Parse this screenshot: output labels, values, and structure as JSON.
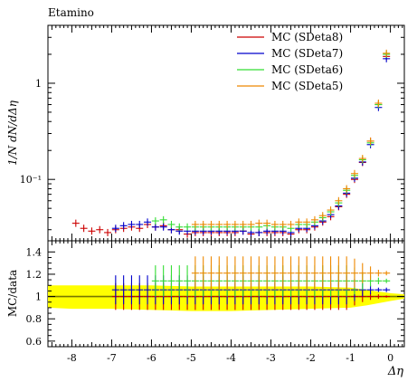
{
  "chart_data": [
    {
      "type": "scatter",
      "title": "Etamino",
      "ylabel": "1/N dN/dΔη",
      "yscale": "log",
      "ylim": [
        0.023,
        4.0
      ],
      "xlim": [
        -8.6,
        0.35
      ],
      "yticks": [
        {
          "value": 1,
          "label": "1"
        },
        {
          "value": 0.1,
          "label": "10⁻¹"
        }
      ],
      "legend_position": "top-right",
      "series": [
        {
          "name": "MC (SDeta8)",
          "color": "#cc0000",
          "x": [
            -7.9,
            -7.7,
            -7.5,
            -7.3,
            -7.1,
            -6.9,
            -6.7,
            -6.5,
            -6.3,
            -6.1,
            -5.9,
            -5.7,
            -5.5,
            -5.3,
            -5.1,
            -4.9,
            -4.7,
            -4.5,
            -4.3,
            -4.1,
            -3.9,
            -3.7,
            -3.5,
            -3.3,
            -3.1,
            -2.9,
            -2.7,
            -2.5,
            -2.3,
            -2.1,
            -1.9,
            -1.7,
            -1.5,
            -1.3,
            -1.1,
            -0.9,
            -0.7,
            -0.5,
            -0.3,
            -0.1
          ],
          "y": [
            0.035,
            0.031,
            0.029,
            0.03,
            0.028,
            0.03,
            0.031,
            0.032,
            0.031,
            0.034,
            0.032,
            0.033,
            0.03,
            0.03,
            0.027,
            0.028,
            0.028,
            0.028,
            0.028,
            0.028,
            0.028,
            0.029,
            0.027,
            0.028,
            0.028,
            0.028,
            0.028,
            0.027,
            0.03,
            0.03,
            0.032,
            0.036,
            0.041,
            0.052,
            0.07,
            0.1,
            0.15,
            0.25,
            0.6,
            1.9
          ]
        },
        {
          "name": "MC (SDeta7)",
          "color": "#0000cc",
          "x": [
            -6.9,
            -6.7,
            -6.5,
            -6.3,
            -6.1,
            -5.9,
            -5.7,
            -5.5,
            -5.3,
            -5.1,
            -4.9,
            -4.7,
            -4.5,
            -4.3,
            -4.1,
            -3.9,
            -3.7,
            -3.5,
            -3.3,
            -3.1,
            -2.9,
            -2.7,
            -2.5,
            -2.3,
            -2.1,
            -1.9,
            -1.7,
            -1.5,
            -1.3,
            -1.1,
            -0.9,
            -0.7,
            -0.5,
            -0.3,
            -0.1
          ],
          "y": [
            0.031,
            0.033,
            0.034,
            0.034,
            0.036,
            0.032,
            0.032,
            0.03,
            0.029,
            0.029,
            0.029,
            0.029,
            0.029,
            0.029,
            0.029,
            0.029,
            0.029,
            0.028,
            0.028,
            0.029,
            0.029,
            0.029,
            0.028,
            0.031,
            0.031,
            0.033,
            0.037,
            0.043,
            0.053,
            0.072,
            0.103,
            0.152,
            0.23,
            0.56,
            1.8
          ]
        },
        {
          "name": "MC (SDeta6)",
          "color": "#33dd33",
          "x": [
            -5.9,
            -5.7,
            -5.5,
            -5.3,
            -5.1,
            -4.9,
            -4.7,
            -4.5,
            -4.3,
            -4.1,
            -3.9,
            -3.7,
            -3.5,
            -3.3,
            -3.1,
            -2.9,
            -2.7,
            -2.5,
            -2.3,
            -2.1,
            -1.9,
            -1.7,
            -1.5,
            -1.3,
            -1.1,
            -0.9,
            -0.7,
            -0.5,
            -0.3,
            -0.1
          ],
          "y": [
            0.037,
            0.038,
            0.034,
            0.032,
            0.032,
            0.032,
            0.032,
            0.032,
            0.032,
            0.032,
            0.032,
            0.032,
            0.032,
            0.032,
            0.033,
            0.032,
            0.032,
            0.031,
            0.034,
            0.034,
            0.036,
            0.04,
            0.046,
            0.057,
            0.077,
            0.11,
            0.16,
            0.24,
            0.6,
            2.0
          ]
        },
        {
          "name": "MC (SDeta5)",
          "color": "#ee8800",
          "x": [
            -4.9,
            -4.7,
            -4.5,
            -4.3,
            -4.1,
            -3.9,
            -3.7,
            -3.5,
            -3.3,
            -3.1,
            -2.9,
            -2.7,
            -2.5,
            -2.3,
            -2.1,
            -1.9,
            -1.7,
            -1.5,
            -1.3,
            -1.1,
            -0.9,
            -0.7,
            -0.5,
            -0.3,
            -0.1
          ],
          "y": [
            0.034,
            0.034,
            0.034,
            0.034,
            0.034,
            0.034,
            0.034,
            0.034,
            0.035,
            0.035,
            0.034,
            0.034,
            0.034,
            0.036,
            0.036,
            0.038,
            0.042,
            0.048,
            0.06,
            0.08,
            0.115,
            0.165,
            0.25,
            0.62,
            2.05
          ]
        }
      ]
    },
    {
      "type": "scatter",
      "xlabel": "Δη",
      "ylabel": "MC/data",
      "ylim": [
        0.55,
        1.5
      ],
      "xlim": [
        -8.6,
        0.35
      ],
      "yticks": [
        {
          "value": 0.6,
          "label": "0.6"
        },
        {
          "value": 0.8,
          "label": "0.8"
        },
        {
          "value": 1.0,
          "label": "1"
        },
        {
          "value": 1.2,
          "label": "1.2"
        },
        {
          "value": 1.4,
          "label": "1.4"
        }
      ],
      "xticks": [
        {
          "value": -8,
          "label": "-8"
        },
        {
          "value": -7,
          "label": "-7"
        },
        {
          "value": -6,
          "label": "-6"
        },
        {
          "value": -5,
          "label": "-5"
        },
        {
          "value": -4,
          "label": "-4"
        },
        {
          "value": -3,
          "label": "-3"
        },
        {
          "value": -2,
          "label": "-2"
        },
        {
          "value": -1,
          "label": "-1"
        },
        {
          "value": 0,
          "label": "0"
        }
      ],
      "reference_line": 1.0,
      "reference_color": "#777700",
      "uncertainty_band": {
        "color": "#ffff00",
        "x": [
          -8.6,
          -8.0,
          -7.0,
          -6.0,
          -5.0,
          -4.0,
          -3.0,
          -2.0,
          -1.0,
          -0.6,
          0.0,
          0.35
        ],
        "y_low": [
          0.9,
          0.89,
          0.89,
          0.88,
          0.87,
          0.87,
          0.88,
          0.89,
          0.9,
          0.92,
          0.96,
          0.98
        ],
        "y_high": [
          1.1,
          1.1,
          1.1,
          1.1,
          1.09,
          1.09,
          1.09,
          1.09,
          1.08,
          1.06,
          1.03,
          1.02
        ]
      },
      "series": [
        {
          "name": "MC (SDeta8)",
          "color": "#cc0000",
          "x": [
            -6.9,
            -6.7,
            -6.5,
            -6.3,
            -6.1,
            -5.9,
            -5.7,
            -5.5,
            -5.3,
            -5.1,
            -4.9,
            -4.7,
            -4.5,
            -4.3,
            -4.1,
            -3.9,
            -3.7,
            -3.5,
            -3.3,
            -3.1,
            -2.9,
            -2.7,
            -2.5,
            -2.3,
            -2.1,
            -1.9,
            -1.7,
            -1.5,
            -1.3,
            -1.1,
            -0.9,
            -0.7,
            -0.5,
            -0.3,
            -0.1
          ],
          "y": [
            1.0,
            1.0,
            1.0,
            1.0,
            1.0,
            1.0,
            1.0,
            1.0,
            1.0,
            1.0,
            1.0,
            1.0,
            1.0,
            1.0,
            1.0,
            1.0,
            1.0,
            1.0,
            1.0,
            1.0,
            1.0,
            1.0,
            1.0,
            1.0,
            1.0,
            1.0,
            1.0,
            1.0,
            1.0,
            1.0,
            1.0,
            1.0,
            1.0,
            1.0,
            1.0
          ],
          "err": [
            0.12,
            0.12,
            0.12,
            0.12,
            0.12,
            0.12,
            0.12,
            0.12,
            0.12,
            0.12,
            0.12,
            0.12,
            0.12,
            0.12,
            0.12,
            0.12,
            0.12,
            0.12,
            0.12,
            0.12,
            0.12,
            0.12,
            0.12,
            0.12,
            0.12,
            0.12,
            0.12,
            0.12,
            0.12,
            0.12,
            0.08,
            0.05,
            0.03,
            0.02,
            0.01
          ]
        },
        {
          "name": "MC (SDeta7)",
          "color": "#0000cc",
          "x": [
            -6.9,
            -6.7,
            -6.5,
            -6.3,
            -6.1,
            -5.9,
            -5.7,
            -5.5,
            -5.3,
            -5.1,
            -4.9,
            -4.7,
            -4.5,
            -4.3,
            -4.1,
            -3.9,
            -3.7,
            -3.5,
            -3.3,
            -3.1,
            -2.9,
            -2.7,
            -2.5,
            -2.3,
            -2.1,
            -1.9,
            -1.7,
            -1.5,
            -1.3,
            -1.1,
            -0.9,
            -0.7,
            -0.5,
            -0.3,
            -0.1
          ],
          "y": [
            1.06,
            1.06,
            1.06,
            1.06,
            1.06,
            1.06,
            1.06,
            1.06,
            1.06,
            1.06,
            1.06,
            1.06,
            1.06,
            1.06,
            1.06,
            1.06,
            1.06,
            1.06,
            1.06,
            1.06,
            1.06,
            1.06,
            1.06,
            1.06,
            1.06,
            1.06,
            1.06,
            1.06,
            1.06,
            1.06,
            1.06,
            1.06,
            1.06,
            1.06,
            1.06
          ],
          "err": [
            0.13,
            0.13,
            0.13,
            0.13,
            0.13,
            0.13,
            0.13,
            0.13,
            0.13,
            0.13,
            0.13,
            0.13,
            0.13,
            0.13,
            0.13,
            0.13,
            0.13,
            0.13,
            0.13,
            0.13,
            0.13,
            0.13,
            0.13,
            0.13,
            0.13,
            0.13,
            0.13,
            0.13,
            0.13,
            0.13,
            0.1,
            0.06,
            0.04,
            0.02,
            0.02
          ]
        },
        {
          "name": "MC (SDeta6)",
          "color": "#33dd33",
          "x": [
            -5.9,
            -5.7,
            -5.5,
            -5.3,
            -5.1,
            -4.9,
            -4.7,
            -4.5,
            -4.3,
            -4.1,
            -3.9,
            -3.7,
            -3.5,
            -3.3,
            -3.1,
            -2.9,
            -2.7,
            -2.5,
            -2.3,
            -2.1,
            -1.9,
            -1.7,
            -1.5,
            -1.3,
            -1.1,
            -0.9,
            -0.7,
            -0.5,
            -0.3,
            -0.1
          ],
          "y": [
            1.14,
            1.14,
            1.14,
            1.14,
            1.14,
            1.14,
            1.14,
            1.14,
            1.14,
            1.14,
            1.14,
            1.14,
            1.14,
            1.14,
            1.14,
            1.14,
            1.14,
            1.14,
            1.14,
            1.14,
            1.14,
            1.14,
            1.14,
            1.14,
            1.14,
            1.14,
            1.14,
            1.14,
            1.14,
            1.14
          ],
          "err": [
            0.14,
            0.14,
            0.14,
            0.14,
            0.14,
            0.14,
            0.14,
            0.14,
            0.14,
            0.14,
            0.14,
            0.14,
            0.14,
            0.14,
            0.14,
            0.14,
            0.14,
            0.14,
            0.14,
            0.14,
            0.14,
            0.14,
            0.14,
            0.14,
            0.14,
            0.12,
            0.08,
            0.05,
            0.03,
            0.02
          ]
        },
        {
          "name": "MC (SDeta5)",
          "color": "#ee8800",
          "x": [
            -4.9,
            -4.7,
            -4.5,
            -4.3,
            -4.1,
            -3.9,
            -3.7,
            -3.5,
            -3.3,
            -3.1,
            -2.9,
            -2.7,
            -2.5,
            -2.3,
            -2.1,
            -1.9,
            -1.7,
            -1.5,
            -1.3,
            -1.1,
            -0.9,
            -0.7,
            -0.5,
            -0.3,
            -0.1
          ],
          "y": [
            1.21,
            1.21,
            1.21,
            1.21,
            1.21,
            1.21,
            1.21,
            1.21,
            1.21,
            1.21,
            1.21,
            1.21,
            1.21,
            1.21,
            1.21,
            1.21,
            1.21,
            1.21,
            1.21,
            1.21,
            1.21,
            1.21,
            1.21,
            1.21,
            1.21
          ],
          "err": [
            0.15,
            0.15,
            0.15,
            0.15,
            0.15,
            0.15,
            0.15,
            0.15,
            0.15,
            0.15,
            0.15,
            0.15,
            0.15,
            0.15,
            0.15,
            0.15,
            0.15,
            0.15,
            0.15,
            0.15,
            0.13,
            0.09,
            0.06,
            0.03,
            0.02
          ]
        }
      ]
    }
  ]
}
